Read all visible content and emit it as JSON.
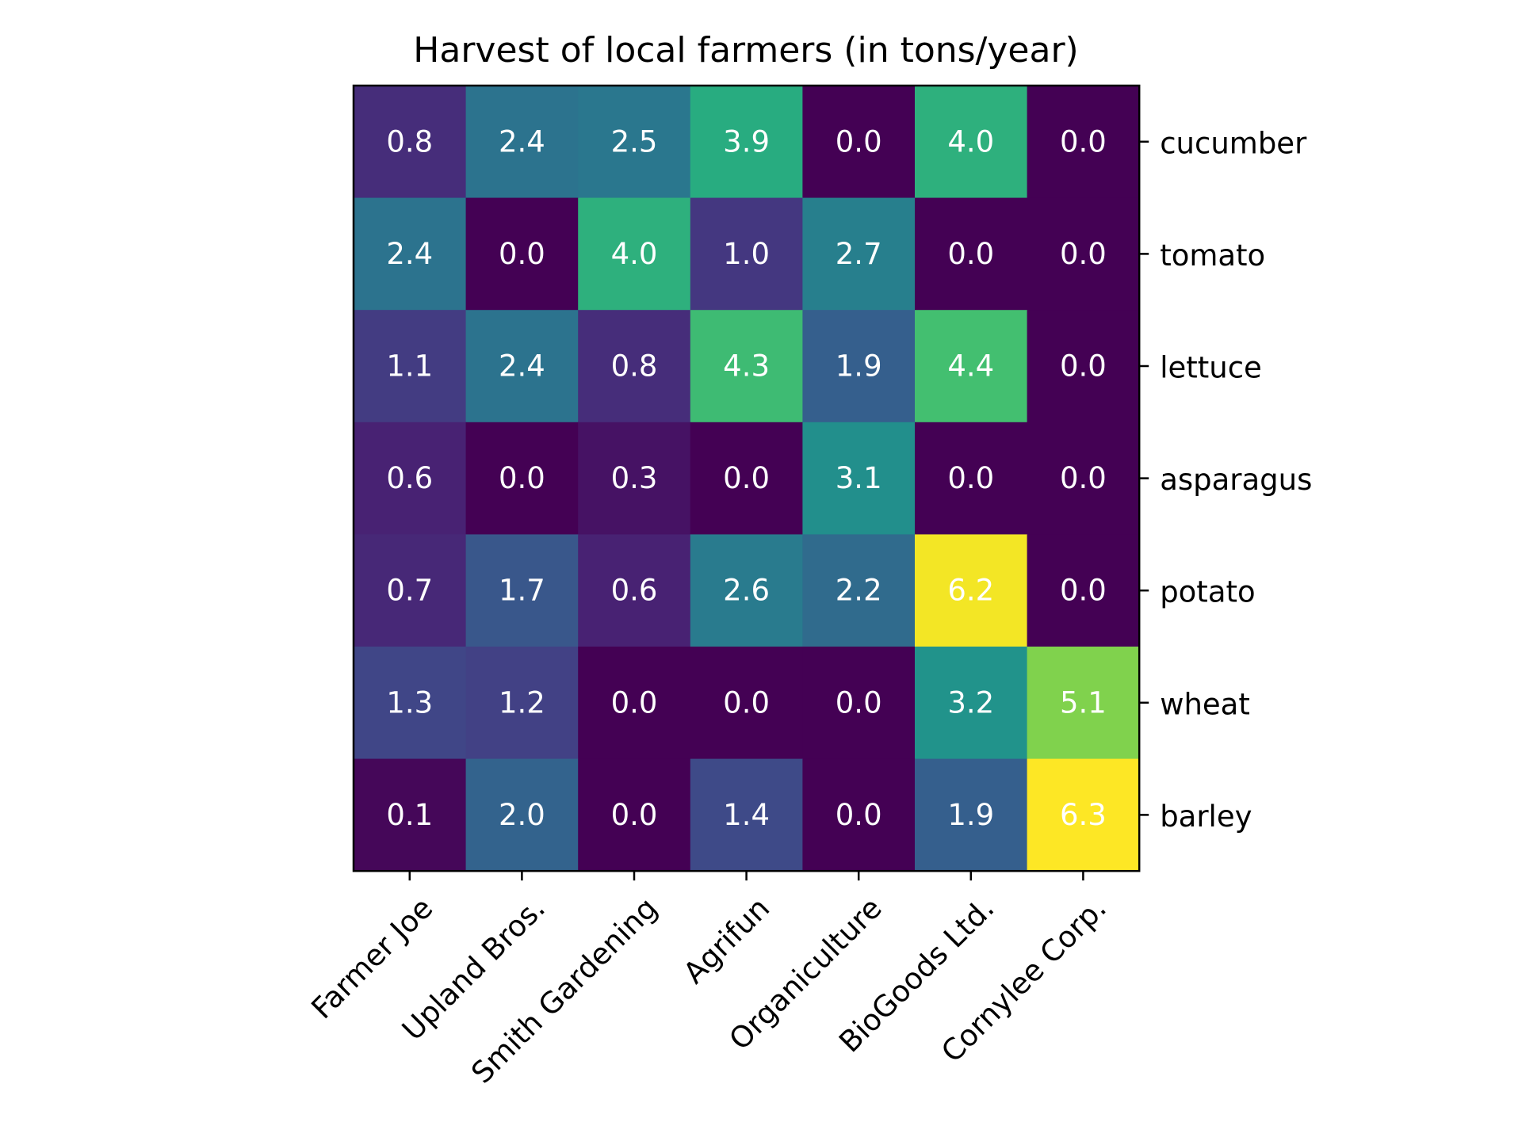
{
  "chart_data": {
    "type": "heatmap",
    "title": "Harvest of local farmers (in tons/year)",
    "x_categories": [
      "Farmer Joe",
      "Upland Bros.",
      "Smith Gardening",
      "Agrifun",
      "Organiculture",
      "BioGoods Ltd.",
      "Cornylee Corp."
    ],
    "y_categories": [
      "cucumber",
      "tomato",
      "lettuce",
      "asparagus",
      "potato",
      "wheat",
      "barley"
    ],
    "values": [
      [
        0.8,
        2.4,
        2.5,
        3.9,
        0.0,
        4.0,
        0.0
      ],
      [
        2.4,
        0.0,
        4.0,
        1.0,
        2.7,
        0.0,
        0.0
      ],
      [
        1.1,
        2.4,
        0.8,
        4.3,
        1.9,
        4.4,
        0.0
      ],
      [
        0.6,
        0.0,
        0.3,
        0.0,
        3.1,
        0.0,
        0.0
      ],
      [
        0.7,
        1.7,
        0.6,
        2.6,
        2.2,
        6.2,
        0.0
      ],
      [
        1.3,
        1.2,
        0.0,
        0.0,
        0.0,
        3.2,
        5.1
      ],
      [
        0.1,
        2.0,
        0.0,
        1.4,
        0.0,
        1.9,
        6.3
      ]
    ],
    "value_range": [
      0.0,
      6.3
    ],
    "colormap": "viridis",
    "cell_text_color": "#ffffff",
    "x_tick_rotation": "45-degrees",
    "y_ticks_position": "right",
    "grid": false,
    "colorbar": false,
    "legend": false
  }
}
